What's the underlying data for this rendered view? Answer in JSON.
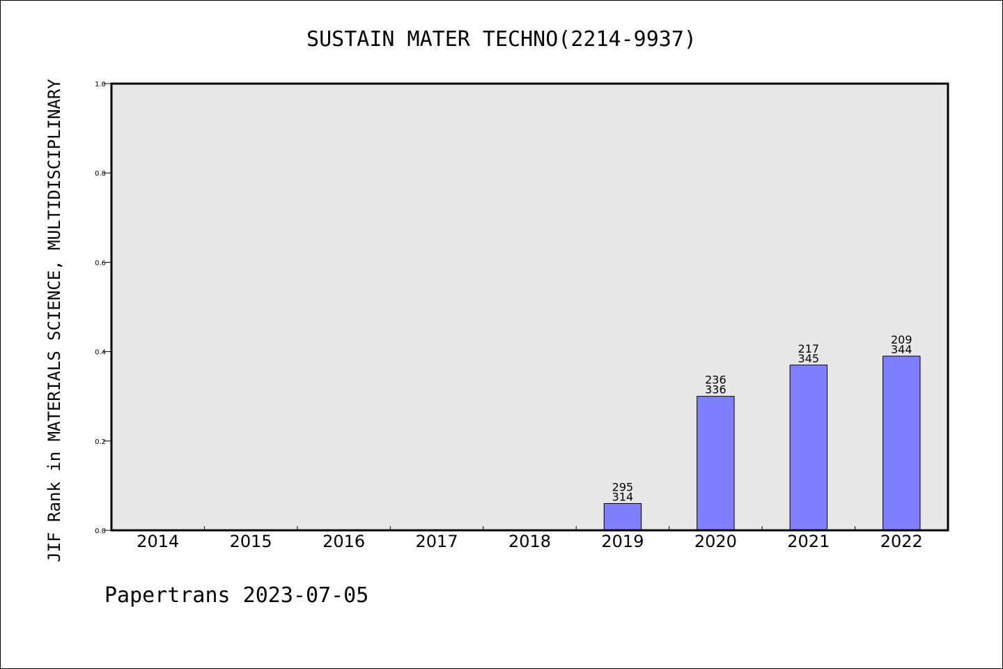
{
  "chart_data": {
    "type": "bar",
    "title": "SUSTAIN MATER TECHNO(2214-9937)",
    "xlabel": "",
    "ylabel": "JIF Rank in MATERIALS SCIENCE, MULTIDISCIPLINARY",
    "categories": [
      "2014",
      "2015",
      "2016",
      "2017",
      "2018",
      "2019",
      "2020",
      "2021",
      "2022"
    ],
    "values": [
      0,
      0,
      0,
      0,
      0,
      0.06,
      0.3,
      0.37,
      0.39
    ],
    "data_labels": [
      null,
      null,
      null,
      null,
      null,
      {
        "top": "295",
        "bottom": "314"
      },
      {
        "top": "236",
        "bottom": "336"
      },
      {
        "top": "217",
        "bottom": "345"
      },
      {
        "top": "209",
        "bottom": "344"
      }
    ],
    "ylim": [
      0.0,
      1.0
    ],
    "yticks": [
      "0.0",
      "0.2",
      "0.4",
      "0.6",
      "0.8",
      "1.0"
    ],
    "grid": false,
    "colors": {
      "bar": "#8080ff",
      "plot_background": "#e8e8e8",
      "axis": "#000000"
    }
  },
  "footer": "Papertrans 2023-07-05"
}
